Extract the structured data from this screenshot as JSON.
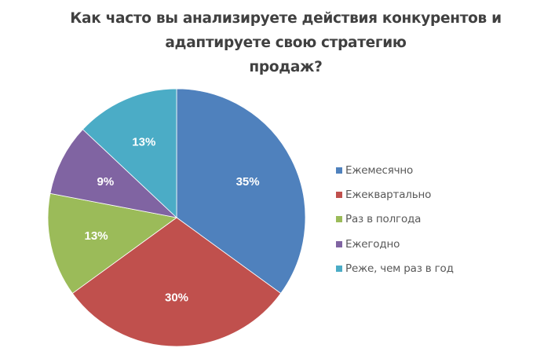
{
  "chart_data": {
    "type": "pie",
    "title": "Как часто вы анализируете действия конкурентов и адаптируете свою стратегию продаж?",
    "title_lines": [
      "Как часто вы анализируете действия конкурентов и",
      "адаптируете свою стратегию",
      "продаж?"
    ],
    "categories": [
      "Ежемесячно",
      "Ежеквартально",
      "Раз в полгода",
      "Ежегодно",
      "Реже, чем раз в год"
    ],
    "values": [
      35,
      30,
      13,
      9,
      13
    ],
    "unit": "%",
    "data_labels": [
      "35%",
      "30%",
      "13%",
      "9%",
      "13%"
    ],
    "colors": [
      "#4F81BD",
      "#C0504D",
      "#9BBB59",
      "#8064A2",
      "#4BACC6"
    ],
    "start_angle": "12 o'clock",
    "direction": "clockwise",
    "legend_position": "right"
  },
  "legend": {
    "items": [
      {
        "label": "Ежемесячно",
        "color": "#4F81BD"
      },
      {
        "label": "Ежеквартально",
        "color": "#C0504D"
      },
      {
        "label": "Раз в полгода",
        "color": "#9BBB59"
      },
      {
        "label": "Ежегодно",
        "color": "#8064A2"
      },
      {
        "label": "Реже, чем раз в год",
        "color": "#4BACC6"
      }
    ]
  }
}
